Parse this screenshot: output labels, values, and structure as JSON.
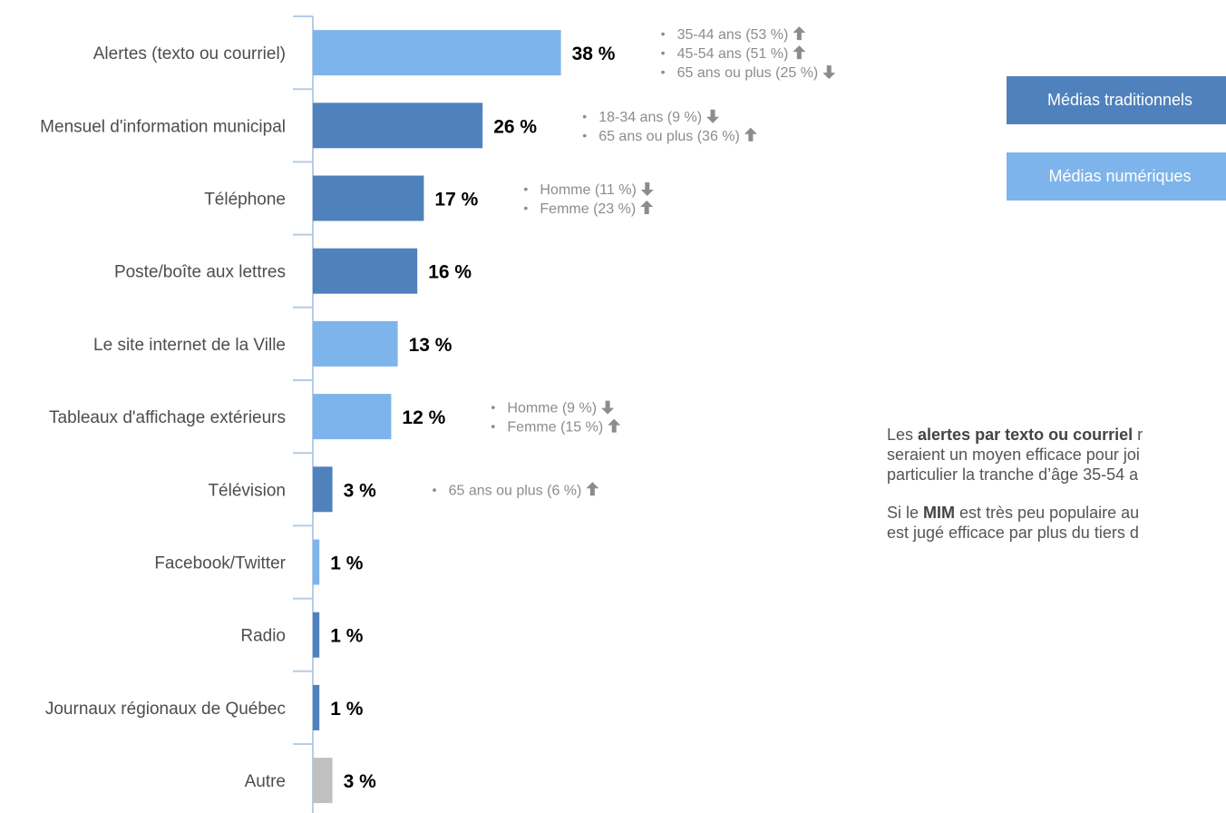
{
  "chart_data": {
    "type": "bar",
    "orientation": "horizontal",
    "categories": [
      "Alertes (texto ou courriel)",
      "Mensuel d'information municipal",
      "Téléphone",
      "Poste/boîte aux lettres",
      "Le site internet de la Ville",
      "Tableaux d'affichage extérieurs",
      "Télévision",
      "Facebook/Twitter",
      "Radio",
      "Journaux régionaux de Québec",
      "Autre"
    ],
    "values": [
      38,
      26,
      17,
      16,
      13,
      12,
      3,
      1,
      1,
      1,
      3
    ],
    "value_labels": [
      "38 %",
      "26 %",
      "17 %",
      "16 %",
      "13 %",
      "12 %",
      "3 %",
      "1 %",
      "1 %",
      "1 %",
      "3 %"
    ],
    "media_type": [
      "numerique",
      "traditionnel",
      "traditionnel",
      "traditionnel",
      "numerique",
      "numerique",
      "traditionnel",
      "numerique",
      "traditionnel",
      "traditionnel",
      "autre"
    ],
    "colors": {
      "traditionnel": "#4f81bd",
      "numerique": "#7db4ec",
      "autre": "#c0c0c0",
      "axis": "#b7cde6",
      "annotation": "#8c8c8c",
      "value_label": "#000000"
    },
    "annotations": [
      {
        "bar": 0,
        "items": [
          {
            "text": "35-44 ans (53 %)",
            "arrow": "up"
          },
          {
            "text": "45-54 ans (51 %)",
            "arrow": "up"
          },
          {
            "text": "65 ans ou plus (25 %)",
            "arrow": "down"
          }
        ]
      },
      {
        "bar": 1,
        "items": [
          {
            "text": "18-34 ans (9 %)",
            "arrow": "down"
          },
          {
            "text": "65 ans ou plus (36 %)",
            "arrow": "up"
          }
        ]
      },
      {
        "bar": 2,
        "items": [
          {
            "text": "Homme (11 %)",
            "arrow": "down"
          },
          {
            "text": "Femme (23 %)",
            "arrow": "up"
          }
        ]
      },
      {
        "bar": 5,
        "items": [
          {
            "text": "Homme (9 %)",
            "arrow": "down"
          },
          {
            "text": "Femme (15 %)",
            "arrow": "up"
          }
        ]
      },
      {
        "bar": 6,
        "items": [
          {
            "text": "65 ans ou plus (6 %)",
            "arrow": "up"
          }
        ]
      }
    ],
    "legend": [
      {
        "label": "Médias traditionnels",
        "key": "traditionnel"
      },
      {
        "label": "Médias numériques",
        "key": "numerique"
      }
    ],
    "legend_position": "right",
    "grid": false
  },
  "commentary": {
    "p1_before": "Les ",
    "p1_bold": "alertes par texto ou courriel",
    "p1_line1_after": " r",
    "p1_line2": "seraient un moyen efficace pour joi",
    "p1_line3": "particulier la tranche d’âge 35-54 a",
    "p2_before": "Si le ",
    "p2_bold": "MIM",
    "p2_line1_after": " est très peu populaire au",
    "p2_line2": "est jugé efficace par plus du tiers d"
  }
}
